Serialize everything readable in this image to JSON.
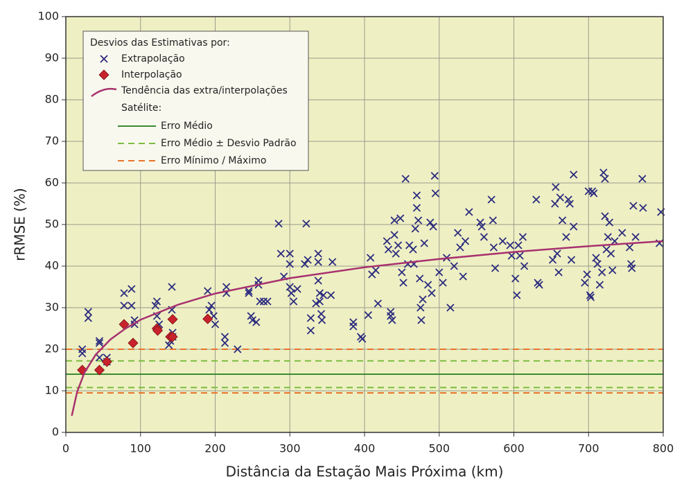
{
  "chart_data": {
    "type": "scatter",
    "x_label": "Distância da Estação Mais Próxima (km)",
    "y_label": "rRMSE (%)",
    "xlim": [
      0,
      800
    ],
    "xticks": [
      0,
      100,
      200,
      300,
      400,
      500,
      600,
      700,
      800
    ],
    "ylim": [
      0,
      100
    ],
    "yticks": [
      0,
      10,
      20,
      30,
      40,
      50,
      60,
      70,
      80,
      90,
      100
    ],
    "grid": true,
    "legend_title": "Desvios das Estimativas por:",
    "series": [
      {
        "name": "Extrapolação",
        "color": "#2b2a7e",
        "marker": "x",
        "x": [
          22,
          22,
          30,
          30,
          45,
          45,
          45,
          55,
          55,
          78,
          78,
          88,
          88,
          92,
          92,
          120,
          122,
          122,
          125,
          138,
          140,
          142,
          142,
          143,
          143,
          190,
          192,
          195,
          198,
          200,
          213,
          213,
          215,
          215,
          230,
          245,
          245,
          248,
          250,
          255,
          258,
          258,
          260,
          265,
          270,
          285,
          288,
          292,
          300,
          300,
          300,
          302,
          305,
          310,
          320,
          322,
          324,
          328,
          328,
          335,
          338,
          338,
          338,
          340,
          340,
          342,
          343,
          345,
          355,
          357,
          385,
          385,
          395,
          397,
          405,
          408,
          410,
          415,
          418,
          430,
          432,
          435,
          435,
          437,
          440,
          440,
          442,
          445,
          448,
          450,
          452,
          455,
          458,
          460,
          465,
          466,
          468,
          470,
          470,
          472,
          474,
          475,
          476,
          478,
          480,
          485,
          488,
          490,
          492,
          494,
          495,
          500,
          505,
          510,
          515,
          520,
          525,
          528,
          532,
          535,
          540,
          555,
          557,
          560,
          570,
          572,
          573,
          575,
          585,
          595,
          597,
          602,
          604,
          606,
          608,
          612,
          614,
          630,
          632,
          634,
          652,
          655,
          656,
          658,
          660,
          662,
          665,
          670,
          673,
          675,
          677,
          680,
          680,
          695,
          698,
          700,
          702,
          703,
          705,
          707,
          710,
          712,
          715,
          718,
          720,
          722,
          722,
          724,
          726,
          728,
          730,
          732,
          735,
          745,
          755,
          757,
          758,
          760,
          763,
          772,
          773,
          795,
          797
        ],
        "values": [
          20,
          19,
          29,
          27.5,
          22,
          21.5,
          18,
          18,
          17,
          33.5,
          30.5,
          34.5,
          30.5,
          27,
          26,
          30.5,
          31.5,
          28,
          26,
          21,
          22,
          29.5,
          35,
          24,
          23,
          34,
          29.5,
          30.5,
          28,
          26,
          21.5,
          23,
          33.5,
          35,
          20,
          34,
          33.5,
          28,
          27,
          26.5,
          36.5,
          35.5,
          31.5,
          31.5,
          31.5,
          50.2,
          43,
          37.5,
          43,
          40.5,
          35,
          33.5,
          31.5,
          34.5,
          40.5,
          50.2,
          41.5,
          24.5,
          27.5,
          31,
          43,
          41,
          36.5,
          33.5,
          31.5,
          28.5,
          27,
          33,
          33,
          41,
          26.5,
          25.5,
          23,
          22.5,
          28.2,
          42,
          38,
          39,
          31,
          46,
          44,
          28,
          29,
          27,
          51,
          47.5,
          43,
          45,
          51.5,
          38.5,
          36,
          61,
          40.5,
          45,
          44,
          40.5,
          49,
          54,
          57,
          51,
          37,
          30,
          27,
          32,
          45.5,
          35.5,
          50.5,
          33.5,
          49.5,
          61.7,
          57.5,
          38.5,
          36,
          42,
          30,
          40,
          48,
          44.5,
          37.5,
          46,
          53,
          50.5,
          49.5,
          47,
          56,
          51,
          44.5,
          39.5,
          46,
          45,
          42.5,
          37,
          33,
          45,
          42.5,
          47,
          40,
          56,
          36,
          35.5,
          41.5,
          55,
          59,
          43,
          38.5,
          56.5,
          51,
          47,
          56,
          55,
          41.5,
          62,
          49.5,
          36,
          38,
          58,
          33,
          32.5,
          58,
          57.5,
          42,
          40.5,
          35.5,
          38.5,
          62.5,
          61,
          52,
          44,
          47,
          50.5,
          43,
          39,
          46,
          48,
          44.5,
          40.5,
          39.5,
          54.5,
          47,
          61,
          54,
          45.5,
          53
        ]
      },
      {
        "name": "Interpolação",
        "color": "#c8232c",
        "marker": "diamond",
        "x": [
          22,
          45,
          55,
          78,
          90,
          122,
          123,
          140,
          143,
          143,
          190
        ],
        "values": [
          15,
          15,
          17,
          26,
          21.5,
          25,
          24.5,
          23,
          23,
          27.2,
          27.3
        ]
      }
    ],
    "trend": {
      "name": "Tendência das extra/interpolações",
      "color": "#a8316f",
      "x": [
        8,
        15,
        25,
        40,
        60,
        80,
        100,
        150,
        200,
        300,
        400,
        500,
        600,
        700,
        800
      ],
      "values": [
        4,
        9.7,
        14.4,
        18.7,
        22.4,
        25.0,
        27.1,
        30.7,
        33.4,
        37.1,
        39.7,
        41.7,
        43.4,
        44.8,
        46.0
      ]
    },
    "reference_title": "Satélite:",
    "reference_lines": [
      {
        "name": "Erro Médio",
        "color": "#3a8a2e",
        "dashed": false,
        "values": [
          14
        ]
      },
      {
        "name": "Erro Médio ± Desvio Padrão",
        "color": "#7cbc3f",
        "dashed": true,
        "values": [
          17.2,
          10.8
        ]
      },
      {
        "name": "Erro Mínimo / Máximo",
        "color": "#e8742a",
        "dashed": true,
        "values": [
          20,
          9.5
        ]
      }
    ]
  }
}
